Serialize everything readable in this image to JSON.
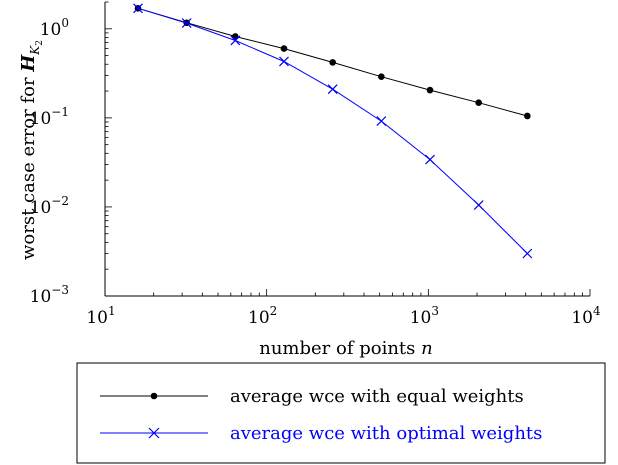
{
  "chart_data": {
    "type": "line",
    "xscale": "log",
    "yscale": "log",
    "xlim": [
      10,
      10000
    ],
    "ylim": [
      0.001,
      2
    ],
    "xlabel": "number of points n",
    "ylabel": "worst case error for H_K2",
    "xticks": [
      {
        "value": 10,
        "base": "10",
        "exp": "1"
      },
      {
        "value": 100,
        "base": "10",
        "exp": "2"
      },
      {
        "value": 1000,
        "base": "10",
        "exp": "3"
      },
      {
        "value": 10000,
        "base": "10",
        "exp": "4"
      }
    ],
    "yticks": [
      {
        "value": 1,
        "base": "10",
        "exp": "0"
      },
      {
        "value": 0.1,
        "base": "10",
        "exp": "−1"
      },
      {
        "value": 0.01,
        "base": "10",
        "exp": "−2"
      },
      {
        "value": 0.001,
        "base": "10",
        "exp": "−3"
      }
    ],
    "series": [
      {
        "name": "average wce with equal weights",
        "color": "#000000",
        "marker": "dot",
        "x": [
          16,
          32,
          64,
          128,
          256,
          512,
          1024,
          2048,
          4096
        ],
        "y": [
          1.7,
          1.17,
          0.82,
          0.6,
          0.42,
          0.29,
          0.205,
          0.148,
          0.105
        ]
      },
      {
        "name": "average wce with optimal weights",
        "color": "#0000ff",
        "marker": "cross",
        "x": [
          16,
          32,
          64,
          128,
          256,
          512,
          1024,
          2048,
          4096
        ],
        "y": [
          1.7,
          1.16,
          0.74,
          0.43,
          0.21,
          0.092,
          0.034,
          0.0105,
          0.003
        ]
      }
    ]
  }
}
